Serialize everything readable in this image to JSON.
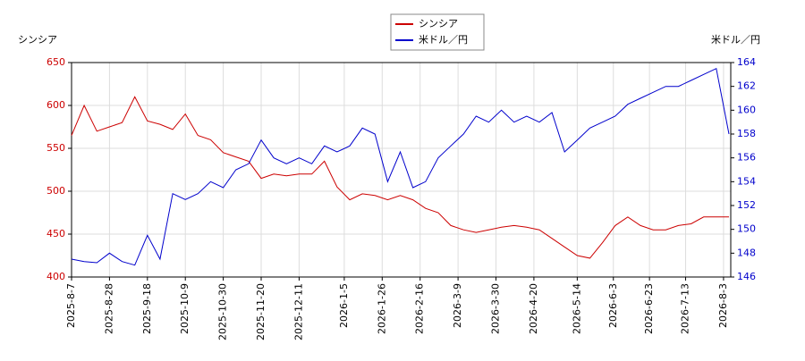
{
  "chart_data": {
    "type": "line",
    "y_label": "シンシア",
    "y2_label": "米ドル／円",
    "x": [
      "2025-8-7",
      "2025-8-14",
      "2025-8-21",
      "2025-8-28",
      "2025-9-4",
      "2025-9-11",
      "2025-9-18",
      "2025-9-25",
      "2025-10-2",
      "2025-10-9",
      "2025-10-16",
      "2025-10-23",
      "2025-10-30",
      "2025-11-6",
      "2025-11-13",
      "2025-11-20",
      "2025-11-27",
      "2025-12-4",
      "2025-12-11",
      "2025-12-18",
      "2025-12-25",
      "2026-1-1",
      "2026-1-8",
      "2026-1-15",
      "2026-1-22",
      "2026-1-29",
      "2026-2-5",
      "2026-2-12",
      "2026-2-19",
      "2026-2-26",
      "2026-3-5",
      "2026-3-12",
      "2026-3-19",
      "2026-3-26",
      "2026-4-2",
      "2026-4-9",
      "2026-4-16",
      "2026-4-23",
      "2026-4-30",
      "2026-5-7",
      "2026-5-14",
      "2026-5-21",
      "2026-5-28",
      "2026-6-4",
      "2026-6-11",
      "2026-6-18",
      "2026-6-25",
      "2026-7-2",
      "2026-7-9",
      "2026-7-16",
      "2026-7-23",
      "2026-7-30",
      "2026-8-6"
    ],
    "series": [
      {
        "name": "シンシア",
        "color": "#cc0000",
        "axis": "y",
        "values": [
          565,
          600,
          570,
          575,
          580,
          610,
          582,
          578,
          572,
          590,
          565,
          560,
          545,
          540,
          535,
          515,
          520,
          518,
          520,
          520,
          535,
          505,
          490,
          497,
          495,
          490,
          495,
          490,
          480,
          475,
          460,
          455,
          452,
          455,
          458,
          460,
          458,
          455,
          445,
          435,
          425,
          422,
          440,
          460,
          470,
          460,
          455,
          455,
          460,
          462,
          470,
          470,
          470
        ]
      },
      {
        "name": "米ドル／円",
        "color": "#0000cc",
        "axis": "y2",
        "values": [
          147.5,
          147.3,
          147.2,
          148,
          147.3,
          147.0,
          149.5,
          147.5,
          153,
          152.5,
          153,
          154,
          153.5,
          155,
          155.5,
          157.5,
          156,
          155.5,
          156,
          155.5,
          157,
          156.5,
          157,
          158.5,
          158,
          154,
          156.5,
          153.5,
          154,
          156,
          157,
          158,
          159.5,
          159,
          160,
          159,
          159.5,
          159,
          159.8,
          156.5,
          157.5,
          158.5,
          159,
          159.5,
          160.5,
          161,
          161.5,
          162,
          162,
          162.5,
          163,
          163.5,
          158
        ]
      }
    ],
    "xlim": [
      "2025-8-7",
      "2026-8-7"
    ],
    "xticks": [
      "2025-8-7",
      "2025-8-28",
      "2025-9-18",
      "2025-10-9",
      "2025-10-30",
      "2025-11-20",
      "2025-12-11",
      "2026-1-5",
      "2026-1-26",
      "2026-2-16",
      "2026-3-9",
      "2026-3-30",
      "2026-4-20",
      "2026-5-14",
      "2026-6-3",
      "2026-6-23",
      "2026-7-13",
      "2026-8-3"
    ],
    "ylim": [
      400,
      650
    ],
    "yticks": [
      400,
      450,
      500,
      550,
      600,
      650
    ],
    "y2lim": [
      146,
      164
    ],
    "y2ticks": [
      146,
      148,
      150,
      152,
      154,
      156,
      158,
      160,
      162,
      164
    ],
    "grid": true
  }
}
